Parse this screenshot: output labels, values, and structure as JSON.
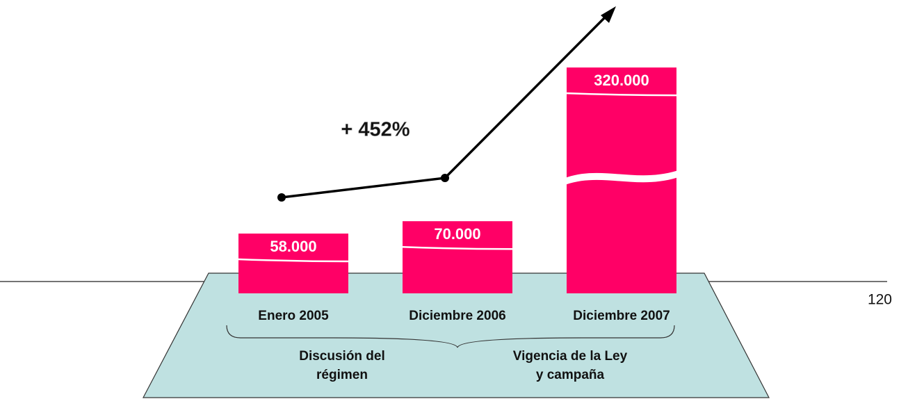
{
  "chart_data": {
    "type": "bar",
    "categories": [
      "Enero 2005",
      "Diciembre 2006",
      "Diciembre 2007"
    ],
    "values": [
      58000,
      70000,
      320000
    ],
    "value_labels": [
      "58.000",
      "70.000",
      "320.000"
    ],
    "color": "#ff0066",
    "annotation": "+ 452%",
    "groups": [
      {
        "lines": [
          "Discusión del",
          "régimen"
        ]
      },
      {
        "lines": [
          "Vigencia de la Ley",
          "y campaña"
        ]
      }
    ]
  },
  "page_number": "120"
}
